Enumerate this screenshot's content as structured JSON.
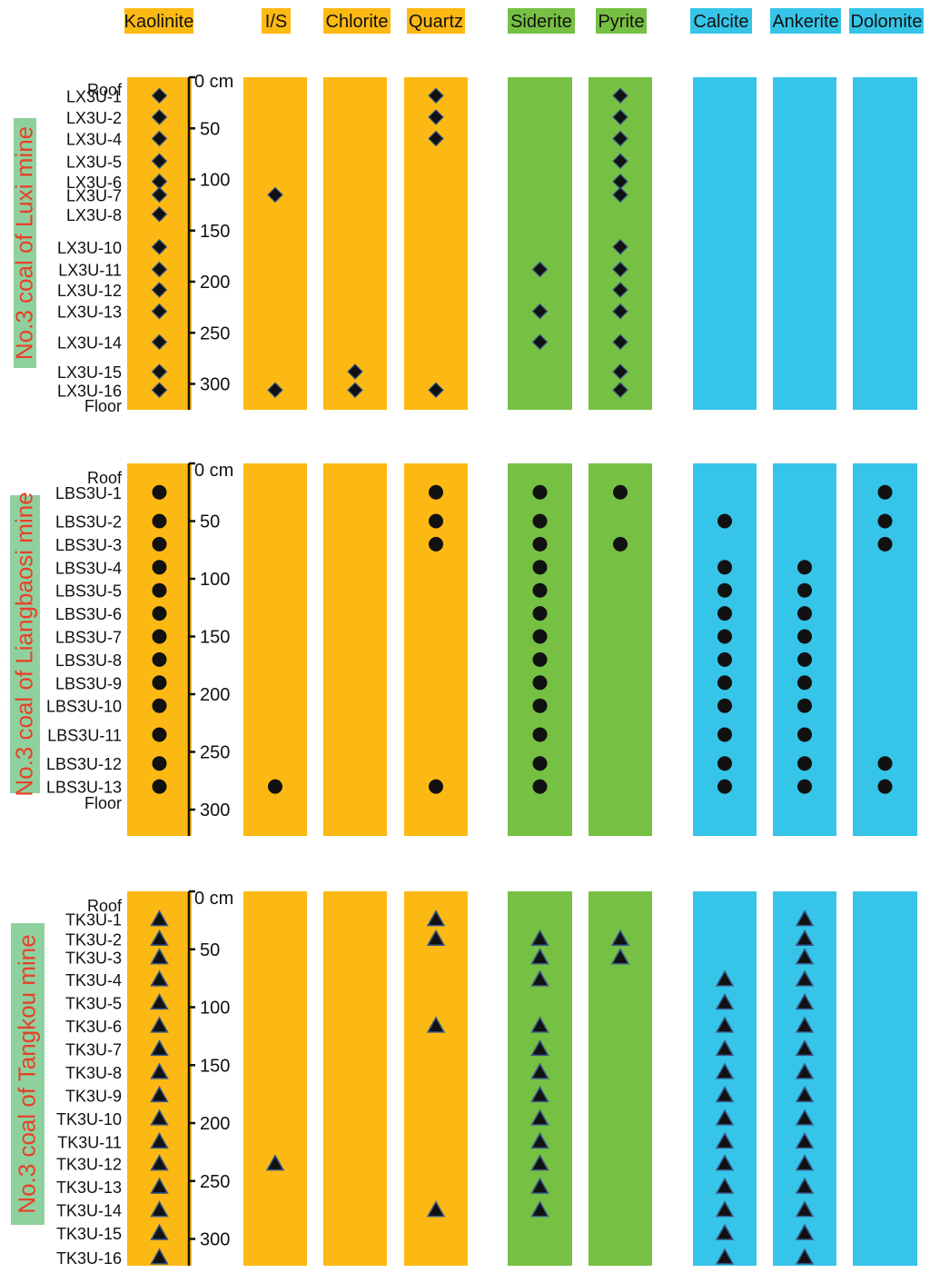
{
  "colors": {
    "clay_group": "#fdb913",
    "sulfide_group": "#76c043",
    "carbonate_group": "#36c5e8",
    "mine_label_bg": "#8fd19e",
    "mine_label_text": "#e8402a",
    "marker": "#111111",
    "marker_edge": "#3a5a8c"
  },
  "minerals": [
    {
      "name": "Kaolinite",
      "group": "clay"
    },
    {
      "name": "I/S",
      "group": "clay"
    },
    {
      "name": "Chlorite",
      "group": "clay"
    },
    {
      "name": "Quartz",
      "group": "clay"
    },
    {
      "name": "Siderite",
      "group": "sulfide"
    },
    {
      "name": "Pyrite",
      "group": "sulfide"
    },
    {
      "name": "Calcite",
      "group": "carbonate"
    },
    {
      "name": "Ankerite",
      "group": "carbonate"
    },
    {
      "name": "Dolomite",
      "group": "carbonate"
    }
  ],
  "chart_data": {
    "type": "scatter",
    "x_categories": [
      "Kaolinite",
      "I/S",
      "Chlorite",
      "Quartz",
      "Siderite",
      "Pyrite",
      "Calcite",
      "Ankerite",
      "Dolomite"
    ],
    "panels": [
      {
        "label": "No.3 coal of Luxi mine",
        "marker": "diamond",
        "depth_ticks": [
          0,
          50,
          100,
          150,
          200,
          250,
          300
        ],
        "depth_unit": "cm",
        "ylim": [
          0,
          320
        ],
        "roof_label": "Roof",
        "floor_label": "Floor",
        "samples": [
          {
            "name": "LX3U-1",
            "depth": 18,
            "minerals": [
              "Kaolinite",
              "Quartz",
              "Pyrite"
            ]
          },
          {
            "name": "LX3U-2",
            "depth": 39,
            "minerals": [
              "Kaolinite",
              "Quartz",
              "Pyrite"
            ]
          },
          {
            "name": "LX3U-4",
            "depth": 60,
            "minerals": [
              "Kaolinite",
              "Quartz",
              "Pyrite"
            ]
          },
          {
            "name": "LX3U-5",
            "depth": 82,
            "minerals": [
              "Kaolinite",
              "Pyrite"
            ]
          },
          {
            "name": "LX3U-6",
            "depth": 102,
            "minerals": [
              "Kaolinite",
              "Pyrite"
            ]
          },
          {
            "name": "LX3U-7",
            "depth": 115,
            "minerals": [
              "Kaolinite",
              "I/S",
              "Pyrite"
            ]
          },
          {
            "name": "LX3U-8",
            "depth": 134,
            "minerals": [
              "Kaolinite"
            ]
          },
          {
            "name": "LX3U-10",
            "depth": 166,
            "minerals": [
              "Kaolinite",
              "Pyrite"
            ]
          },
          {
            "name": "LX3U-11",
            "depth": 188,
            "minerals": [
              "Kaolinite",
              "Siderite",
              "Pyrite"
            ]
          },
          {
            "name": "LX3U-12",
            "depth": 208,
            "minerals": [
              "Kaolinite",
              "Pyrite"
            ]
          },
          {
            "name": "LX3U-13",
            "depth": 229,
            "minerals": [
              "Kaolinite",
              "Siderite",
              "Pyrite"
            ]
          },
          {
            "name": "LX3U-14",
            "depth": 259,
            "minerals": [
              "Kaolinite",
              "Siderite",
              "Pyrite"
            ]
          },
          {
            "name": "LX3U-15",
            "depth": 288,
            "minerals": [
              "Kaolinite",
              "Chlorite",
              "Pyrite"
            ]
          },
          {
            "name": "LX3U-16",
            "depth": 306,
            "minerals": [
              "Kaolinite",
              "I/S",
              "Chlorite",
              "Quartz",
              "Pyrite"
            ]
          }
        ]
      },
      {
        "label": "No.3 coal of Liangbaosi mine",
        "marker": "circle",
        "depth_ticks": [
          0,
          50,
          100,
          150,
          200,
          250,
          300
        ],
        "depth_unit": "cm",
        "ylim": [
          0,
          320
        ],
        "roof_label": "Roof",
        "floor_label": "Floor",
        "samples": [
          {
            "name": "LBS3U-1",
            "depth": 25,
            "minerals": [
              "Kaolinite",
              "Quartz",
              "Siderite",
              "Pyrite",
              "Dolomite"
            ]
          },
          {
            "name": "LBS3U-2",
            "depth": 50,
            "minerals": [
              "Kaolinite",
              "Quartz",
              "Siderite",
              "Calcite",
              "Dolomite"
            ]
          },
          {
            "name": "LBS3U-3",
            "depth": 70,
            "minerals": [
              "Kaolinite",
              "Quartz",
              "Siderite",
              "Pyrite",
              "Dolomite"
            ]
          },
          {
            "name": "LBS3U-4",
            "depth": 90,
            "minerals": [
              "Kaolinite",
              "Siderite",
              "Calcite",
              "Ankerite"
            ]
          },
          {
            "name": "LBS3U-5",
            "depth": 110,
            "minerals": [
              "Kaolinite",
              "Siderite",
              "Calcite",
              "Ankerite"
            ]
          },
          {
            "name": "LBS3U-6",
            "depth": 130,
            "minerals": [
              "Kaolinite",
              "Siderite",
              "Calcite",
              "Ankerite"
            ]
          },
          {
            "name": "LBS3U-7",
            "depth": 150,
            "minerals": [
              "Kaolinite",
              "Siderite",
              "Calcite",
              "Ankerite"
            ]
          },
          {
            "name": "LBS3U-8",
            "depth": 170,
            "minerals": [
              "Kaolinite",
              "Siderite",
              "Calcite",
              "Ankerite"
            ]
          },
          {
            "name": "LBS3U-9",
            "depth": 190,
            "minerals": [
              "Kaolinite",
              "Siderite",
              "Calcite",
              "Ankerite"
            ]
          },
          {
            "name": "LBS3U-10",
            "depth": 210,
            "minerals": [
              "Kaolinite",
              "Siderite",
              "Calcite",
              "Ankerite"
            ]
          },
          {
            "name": "LBS3U-11",
            "depth": 235,
            "minerals": [
              "Kaolinite",
              "Siderite",
              "Calcite",
              "Ankerite"
            ]
          },
          {
            "name": "LBS3U-12",
            "depth": 260,
            "minerals": [
              "Kaolinite",
              "Siderite",
              "Calcite",
              "Ankerite",
              "Dolomite"
            ]
          },
          {
            "name": "LBS3U-13",
            "depth": 280,
            "minerals": [
              "Kaolinite",
              "I/S",
              "Quartz",
              "Siderite",
              "Calcite",
              "Ankerite",
              "Dolomite"
            ]
          }
        ]
      },
      {
        "label": "No.3 coal of Tangkou mine",
        "marker": "triangle",
        "depth_ticks": [
          0,
          50,
          100,
          150,
          200,
          250,
          300
        ],
        "depth_unit": "cm",
        "ylim": [
          0,
          322
        ],
        "roof_label": "Roof",
        "floor_label": "",
        "samples": [
          {
            "name": "TK3U-1",
            "depth": 24,
            "minerals": [
              "Kaolinite",
              "Quartz",
              "Ankerite"
            ]
          },
          {
            "name": "TK3U-2",
            "depth": 41,
            "minerals": [
              "Kaolinite",
              "Quartz",
              "Siderite",
              "Pyrite",
              "Ankerite"
            ]
          },
          {
            "name": "TK3U-3",
            "depth": 57,
            "minerals": [
              "Kaolinite",
              "Siderite",
              "Pyrite",
              "Ankerite"
            ]
          },
          {
            "name": "TK3U-4",
            "depth": 76,
            "minerals": [
              "Kaolinite",
              "Siderite",
              "Calcite",
              "Ankerite"
            ]
          },
          {
            "name": "TK3U-5",
            "depth": 96,
            "minerals": [
              "Kaolinite",
              "Calcite",
              "Ankerite"
            ]
          },
          {
            "name": "TK3U-6",
            "depth": 116,
            "minerals": [
              "Kaolinite",
              "Quartz",
              "Siderite",
              "Calcite",
              "Ankerite"
            ]
          },
          {
            "name": "TK3U-7",
            "depth": 136,
            "minerals": [
              "Kaolinite",
              "Siderite",
              "Calcite",
              "Ankerite"
            ]
          },
          {
            "name": "TK3U-8",
            "depth": 156,
            "minerals": [
              "Kaolinite",
              "Siderite",
              "Calcite",
              "Ankerite"
            ]
          },
          {
            "name": "TK3U-9",
            "depth": 176,
            "minerals": [
              "Kaolinite",
              "Siderite",
              "Calcite",
              "Ankerite"
            ]
          },
          {
            "name": "TK3U-10",
            "depth": 196,
            "minerals": [
              "Kaolinite",
              "Siderite",
              "Calcite",
              "Ankerite"
            ]
          },
          {
            "name": "TK3U-11",
            "depth": 216,
            "minerals": [
              "Kaolinite",
              "Siderite",
              "Calcite",
              "Ankerite"
            ]
          },
          {
            "name": "TK3U-12",
            "depth": 235,
            "minerals": [
              "Kaolinite",
              "I/S",
              "Siderite",
              "Calcite",
              "Ankerite"
            ]
          },
          {
            "name": "TK3U-13",
            "depth": 255,
            "minerals": [
              "Kaolinite",
              "Siderite",
              "Calcite",
              "Ankerite"
            ]
          },
          {
            "name": "TK3U-14",
            "depth": 275,
            "minerals": [
              "Kaolinite",
              "Quartz",
              "Siderite",
              "Calcite",
              "Ankerite"
            ]
          },
          {
            "name": "TK3U-15",
            "depth": 295,
            "minerals": [
              "Kaolinite",
              "Calcite",
              "Ankerite"
            ]
          },
          {
            "name": "TK3U-16",
            "depth": 316,
            "minerals": [
              "Kaolinite",
              "Calcite",
              "Ankerite"
            ]
          }
        ]
      }
    ]
  }
}
